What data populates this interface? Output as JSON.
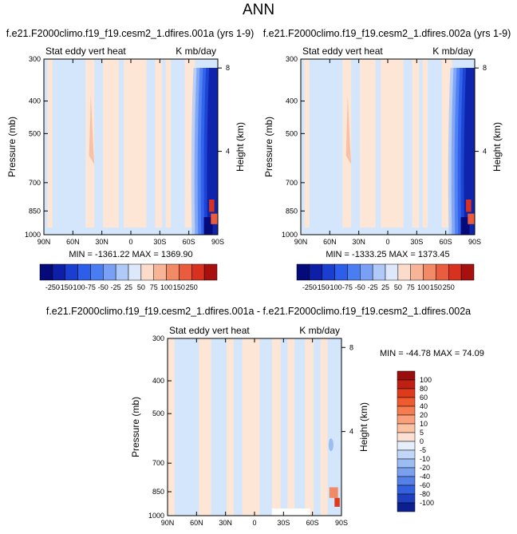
{
  "page_title": "ANN",
  "colors": {
    "bg_blue": "#d3e6fb",
    "bg_tan": "#fde6d6"
  },
  "chart_data": [
    {
      "type": "heatmap",
      "title": "f.e21.F2000climo.f19_f19.cesm2_1.dfires.001a (yrs 1-9)",
      "left_label": "Stat eddy vert heat",
      "right_label": "K mb/day",
      "xlabel": "",
      "ylabel": "Pressure (mb)",
      "ylabel_right": "Height (km)",
      "x_ticks": [
        "90N",
        "60N",
        "30N",
        "0",
        "30S",
        "60S",
        "90S"
      ],
      "y_ticks": [
        "300",
        "400",
        "500",
        "700",
        "850",
        "1000"
      ],
      "y_ticks_right": [
        "8",
        "4"
      ],
      "stats": "MIN = -1361.22   MAX = 1369.90",
      "colorbar": {
        "orientation": "horizontal",
        "labels": [
          "-250",
          "-150",
          "-100",
          "-75",
          "-50",
          "-25",
          "25",
          "50",
          "75",
          "100",
          "150",
          "250"
        ],
        "colors": [
          "#050a7a",
          "#0c1fa6",
          "#1a3fd0",
          "#2d5eea",
          "#4b7df2",
          "#79a0f4",
          "#afc9f8",
          "#dde9fb",
          "#fbdccb",
          "#f8b497",
          "#f38a66",
          "#ea5c3e",
          "#d8321f",
          "#a81010"
        ]
      }
    },
    {
      "type": "heatmap",
      "title": "f.e21.F2000climo.f19_f19.cesm2_1.dfires.002a (yrs 1-9)",
      "left_label": "Stat eddy vert heat",
      "right_label": "K mb/day",
      "xlabel": "",
      "ylabel": "Pressure (mb)",
      "ylabel_right": "Height (km)",
      "x_ticks": [
        "90N",
        "60N",
        "30N",
        "0",
        "30S",
        "60S",
        "90S"
      ],
      "y_ticks": [
        "300",
        "400",
        "500",
        "700",
        "850",
        "1000"
      ],
      "y_ticks_right": [
        "8",
        "4"
      ],
      "stats": "MIN = -1333.25   MAX = 1373.45",
      "colorbar": {
        "orientation": "horizontal",
        "labels": [
          "-250",
          "-150",
          "-100",
          "-75",
          "-50",
          "-25",
          "25",
          "50",
          "75",
          "100",
          "150",
          "250"
        ],
        "colors": [
          "#050a7a",
          "#0c1fa6",
          "#1a3fd0",
          "#2d5eea",
          "#4b7df2",
          "#79a0f4",
          "#afc9f8",
          "#dde9fb",
          "#fbdccb",
          "#f8b497",
          "#f38a66",
          "#ea5c3e",
          "#d8321f",
          "#a81010"
        ]
      }
    },
    {
      "type": "heatmap",
      "title": "f.e21.F2000climo.f19_f19.cesm2_1.dfires.001a - f.e21.F2000climo.f19_f19.cesm2_1.dfires.002a",
      "left_label": "Stat eddy vert heat",
      "right_label": "K mb/day",
      "xlabel": "",
      "ylabel": "Pressure (mb)",
      "ylabel_right": "Height (km)",
      "x_ticks": [
        "90N",
        "60N",
        "30N",
        "0",
        "30S",
        "60S",
        "90S"
      ],
      "y_ticks": [
        "300",
        "400",
        "500",
        "700",
        "850",
        "1000"
      ],
      "y_ticks_right": [
        "8",
        "4"
      ],
      "stats": "MIN = -44.78   MAX =  74.09",
      "colorbar": {
        "orientation": "vertical",
        "labels": [
          "100",
          "80",
          "60",
          "40",
          "20",
          "10",
          "5",
          "0",
          "-5",
          "-10",
          "-20",
          "-40",
          "-60",
          "-80",
          "-100"
        ],
        "colors": [
          "#9b0d0d",
          "#c01f14",
          "#de3a1c",
          "#f05a2f",
          "#f57c50",
          "#f9a07a",
          "#fbc1a3",
          "#fde0d2",
          "#e5eefb",
          "#c2d7f8",
          "#9bbdf4",
          "#7aa0ef",
          "#5580e8",
          "#3360dc",
          "#1d3fc0",
          "#0c1f8f"
        ]
      }
    }
  ]
}
